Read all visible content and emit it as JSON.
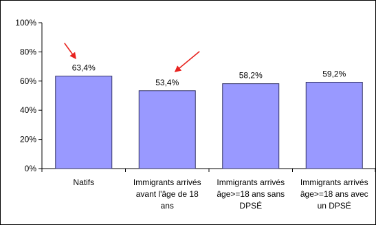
{
  "chart_data": {
    "type": "bar",
    "categories": [
      "Natifs",
      "Immigrants arrivés avant l'âge de 18 ans",
      "Immigrants arrivés âge>=18 ans sans DPSÉ",
      "Immigrants arrivés âge>=18 ans avec un DPSÉ"
    ],
    "category_lines": [
      [
        "Natifs"
      ],
      [
        "Immigrants arrivés",
        "avant l'âge de 18",
        "ans"
      ],
      [
        "Immigrants arrivés",
        "âge>=18 ans sans",
        "DPSÉ"
      ],
      [
        "Immigrants arrivés",
        "âge>=18 ans avec",
        "un DPSÉ"
      ]
    ],
    "values": [
      63.4,
      53.4,
      58.2,
      59.2
    ],
    "value_labels": [
      "63,4%",
      "53,4%",
      "58,2%",
      "59,2%"
    ],
    "ylim": [
      0,
      100
    ],
    "y_ticks": [
      0,
      20,
      40,
      60,
      80,
      100
    ],
    "y_tick_labels": [
      "0%",
      "20%",
      "40%",
      "60%",
      "80%",
      "100%"
    ],
    "grid": false,
    "legend": "none",
    "annotations": [
      {
        "type": "arrow",
        "target_category_index": 0
      },
      {
        "type": "arrow",
        "target_category_index": 1
      }
    ],
    "colors": {
      "bar_fill": "#9999ff",
      "bar_stroke": "#333366",
      "axis": "#000000",
      "arrow": "#e8231f",
      "border": "#000000"
    }
  }
}
